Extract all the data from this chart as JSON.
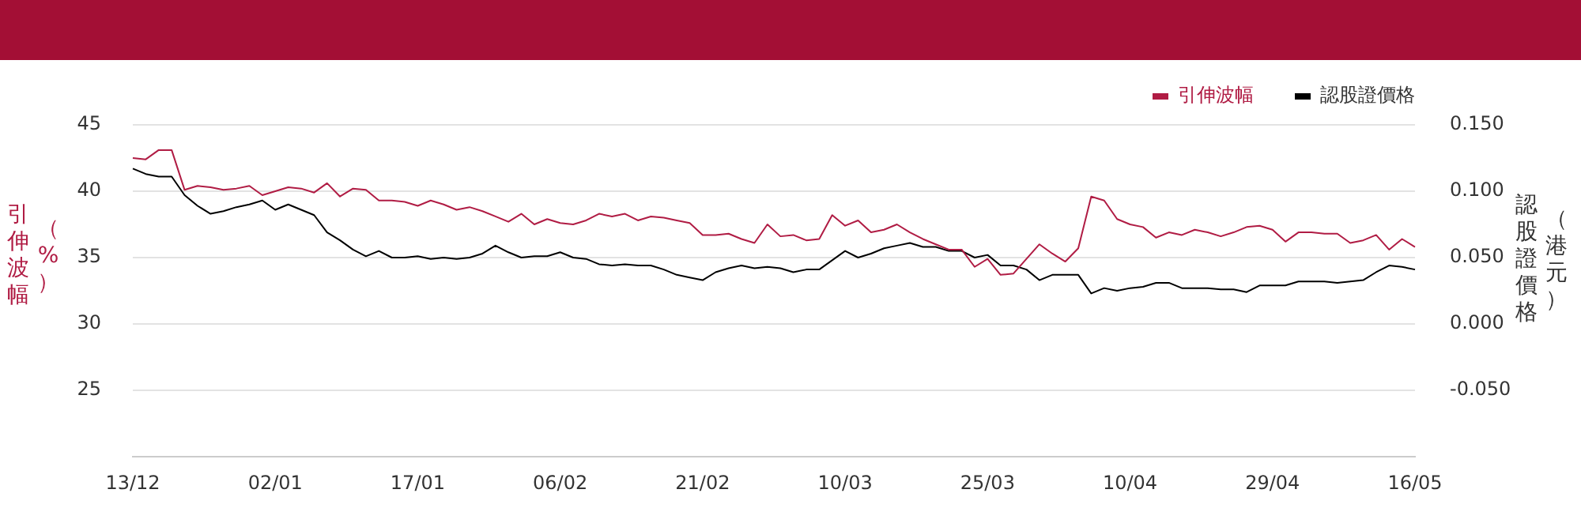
{
  "chart_data": {
    "type": "line",
    "categories": [
      "13/12",
      null,
      null,
      null,
      null,
      null,
      null,
      null,
      null,
      null,
      null,
      "02/01",
      null,
      null,
      null,
      null,
      null,
      null,
      null,
      null,
      null,
      null,
      "17/01",
      null,
      null,
      null,
      null,
      null,
      null,
      null,
      null,
      null,
      null,
      "06/02",
      null,
      null,
      null,
      null,
      null,
      null,
      null,
      null,
      null,
      null,
      "21/02",
      null,
      null,
      null,
      null,
      null,
      null,
      null,
      null,
      null,
      null,
      "10/03",
      null,
      null,
      null,
      null,
      null,
      null,
      null,
      null,
      null,
      null,
      "25/03",
      null,
      null,
      null,
      null,
      null,
      null,
      null,
      null,
      null,
      null,
      "10/04",
      null,
      null,
      null,
      null,
      null,
      null,
      null,
      null,
      null,
      null,
      "29/04",
      null,
      null,
      null,
      null,
      null,
      null,
      null,
      null,
      null,
      null,
      "16/05"
    ],
    "series": [
      {
        "name": "引伸波幅",
        "color": "#b01c44",
        "values": [
          42.5,
          42.4,
          43.1,
          43.1,
          40.1,
          40.4,
          40.3,
          40.1,
          40.2,
          40.4,
          39.7,
          40.0,
          40.3,
          40.2,
          39.9,
          40.6,
          39.6,
          40.2,
          40.1,
          39.3,
          39.3,
          39.2,
          38.9,
          39.3,
          39.0,
          38.6,
          38.8,
          38.5,
          38.1,
          37.7,
          38.3,
          37.5,
          37.9,
          37.6,
          37.5,
          37.8,
          38.3,
          38.1,
          38.3,
          37.8,
          38.1,
          38.0,
          37.8,
          37.6,
          36.7,
          36.7,
          36.8,
          36.4,
          36.1,
          37.5,
          36.6,
          36.7,
          36.3,
          36.4,
          38.2,
          37.4,
          37.8,
          36.9,
          37.1,
          37.5,
          36.9,
          36.4,
          36.0,
          35.6,
          35.6,
          34.3,
          34.9,
          33.7,
          33.8,
          34.9,
          36.0,
          35.3,
          34.7,
          35.7,
          39.6,
          39.3,
          37.9,
          37.5,
          37.3,
          36.5,
          36.9,
          36.7,
          37.1,
          36.9,
          36.6,
          36.9,
          37.3,
          37.4,
          37.1,
          36.2,
          36.9,
          36.9,
          36.8,
          36.8,
          36.1,
          36.3,
          36.7,
          35.6,
          36.4,
          35.8
        ]
      },
      {
        "name": "認股證價格",
        "color": "#000000",
        "axis": "y2",
        "values": [
          0.117,
          0.113,
          0.111,
          0.111,
          0.097,
          0.089,
          0.083,
          0.085,
          0.088,
          0.09,
          0.093,
          0.086,
          0.09,
          0.086,
          0.082,
          0.069,
          0.063,
          0.056,
          0.051,
          0.055,
          0.05,
          0.05,
          0.051,
          0.049,
          0.05,
          0.049,
          0.05,
          0.053,
          0.059,
          0.054,
          0.05,
          0.051,
          0.051,
          0.054,
          0.05,
          0.049,
          0.045,
          0.044,
          0.045,
          0.044,
          0.044,
          0.041,
          0.037,
          0.035,
          0.033,
          0.039,
          0.042,
          0.044,
          0.042,
          0.043,
          0.042,
          0.039,
          0.041,
          0.041,
          0.048,
          0.055,
          0.05,
          0.053,
          0.057,
          0.059,
          0.061,
          0.058,
          0.058,
          0.055,
          0.055,
          0.05,
          0.052,
          0.044,
          0.044,
          0.041,
          0.033,
          0.037,
          0.037,
          0.037,
          0.023,
          0.027,
          0.025,
          0.027,
          0.028,
          0.031,
          0.031,
          0.027,
          0.027,
          0.027,
          0.026,
          0.026,
          0.024,
          0.029,
          0.029,
          0.029,
          0.032,
          0.032,
          0.032,
          0.031,
          0.032,
          0.033,
          0.039,
          0.044,
          0.043,
          0.041
        ]
      }
    ],
    "ylabel": "引伸波幅（%）",
    "y2label": "認股證價格（港元）",
    "ylim": [
      20,
      45
    ],
    "yticks": [
      25,
      30,
      35,
      40,
      45
    ],
    "y2lim": [
      -0.1,
      0.15
    ],
    "y2ticks": [
      {
        "value": -0.05,
        "label": "-0.050"
      },
      {
        "value": 0,
        "label": "0.000"
      },
      {
        "value": 0.05,
        "label": "0.050"
      },
      {
        "value": 0.1,
        "label": "0.100"
      },
      {
        "value": 0.15,
        "label": "0.150"
      }
    ],
    "grid": "y",
    "legend": "top right"
  }
}
